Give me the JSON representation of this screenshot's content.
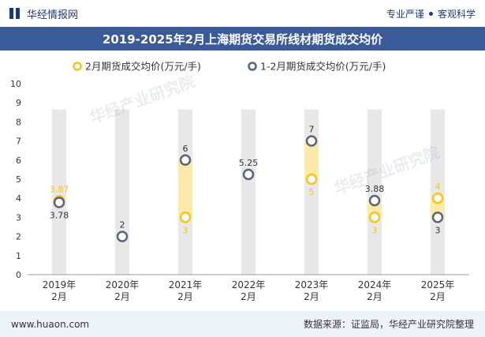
{
  "header": {
    "brand_name": "华经情报网",
    "slogan_left": "专业严谨",
    "slogan_right": "客观科学"
  },
  "chart_title": "2019-2025年2月上海期货交易所线材期货成交均价",
  "watermark": "华经产业研究院",
  "footer": {
    "website": "www.huaon.com",
    "source": "数据来源：证监局，华经产业研究院整理"
  },
  "colors": {
    "series_feb": "#f5c518",
    "series_janfeb": "#5a6478",
    "band": "#fde9a8",
    "grid_col": "#e8e8e8",
    "title_bg": "#3a5a9a"
  },
  "chart_data": {
    "type": "scatter",
    "categories": [
      "2019年\n2月",
      "2020年\n2月",
      "2021年\n2月",
      "2022年\n2月",
      "2023年\n2月",
      "2024年\n2月",
      "2025年\n2月"
    ],
    "series": [
      {
        "name": "2月期货成交均价(万元/手)",
        "values": [
          3.87,
          null,
          3,
          null,
          5,
          3,
          4
        ],
        "labels": [
          "3.87",
          "",
          "3",
          "",
          "5",
          "3",
          "4"
        ]
      },
      {
        "name": "1-2月期货成交均价(万元/手)",
        "values": [
          3.78,
          2,
          6,
          5.25,
          7,
          3.88,
          3
        ],
        "labels": [
          "3.78",
          "2",
          "6",
          "5.25",
          "7",
          "3.88",
          "3"
        ]
      }
    ],
    "ylim": [
      0,
      10
    ],
    "yticks": [
      0,
      1,
      2,
      3,
      4,
      5,
      6,
      7,
      8,
      9,
      10
    ],
    "legend_position": "top",
    "grid": false
  }
}
